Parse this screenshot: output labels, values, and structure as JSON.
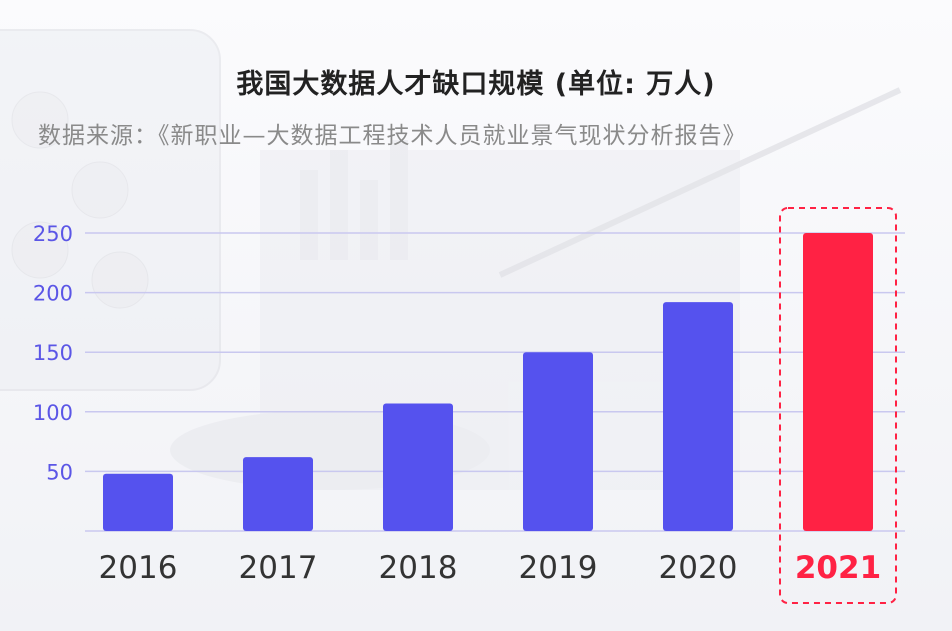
{
  "title": "我国大数据人才缺口规模 (单位: 万人)",
  "source": "数据来源：《新职业—大数据工程技术人员就业景气现状分析报告》",
  "colors": {
    "bar": "#5552ee",
    "highlight": "#ff2244",
    "grid": "#c9c8ef",
    "tick": "#5b56e6"
  },
  "chart_data": {
    "type": "bar",
    "categories": [
      "2016",
      "2017",
      "2018",
      "2019",
      "2020",
      "2021"
    ],
    "values": [
      48,
      62,
      107,
      150,
      192,
      250
    ],
    "highlight_category": "2021",
    "yticks": [
      50,
      100,
      150,
      200,
      250
    ],
    "ylim": [
      0,
      250
    ],
    "grid": true
  }
}
